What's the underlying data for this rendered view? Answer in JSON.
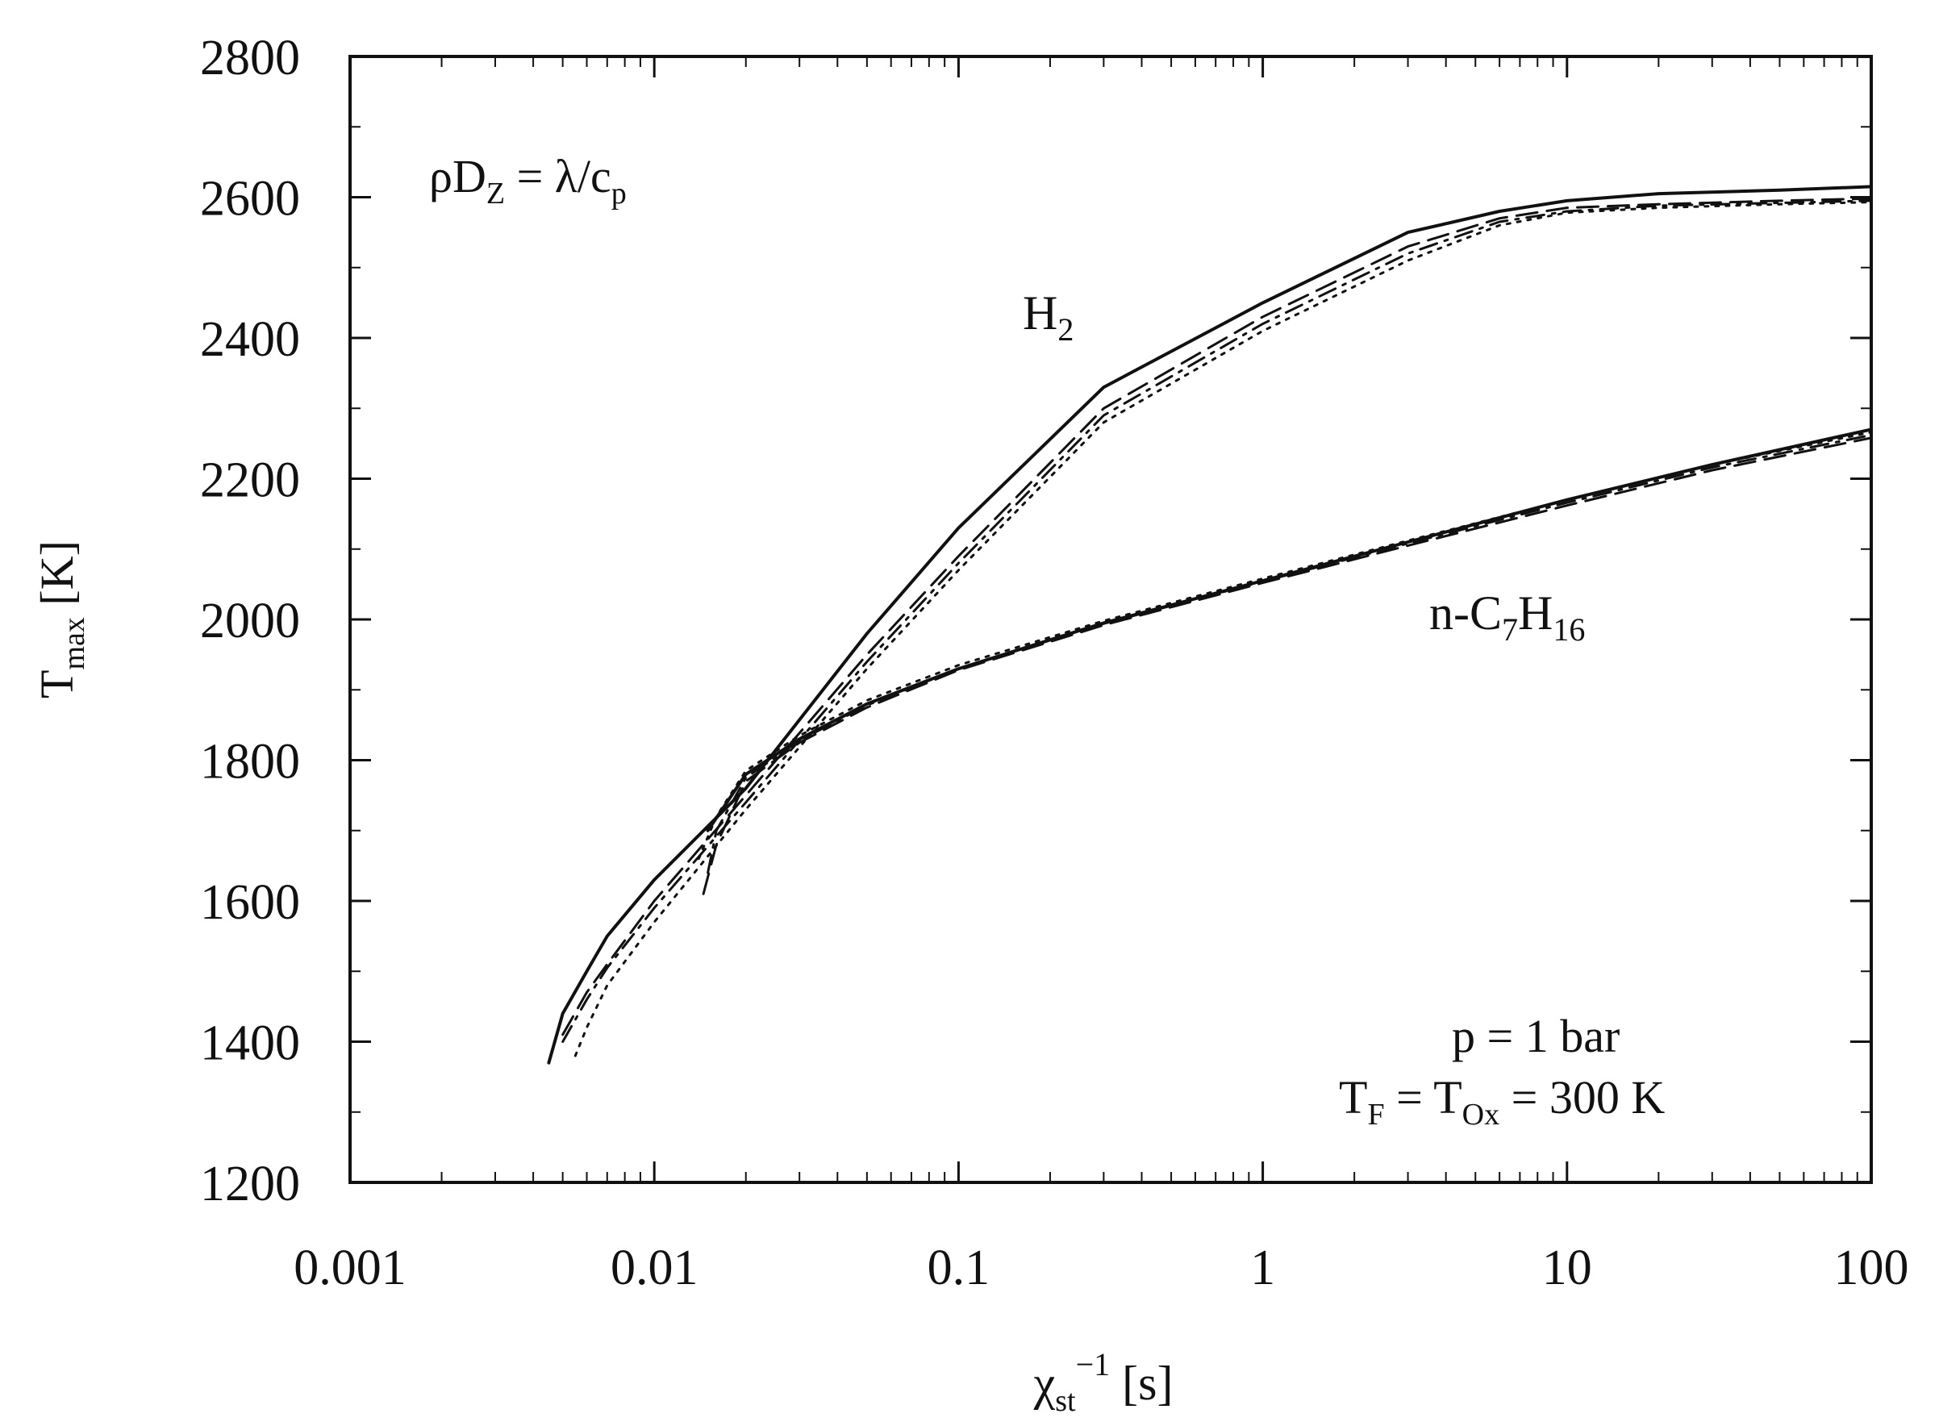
{
  "chart_data": {
    "type": "line",
    "x_scale": "log",
    "xlim": [
      0.001,
      100
    ],
    "ylim": [
      1200,
      2800
    ],
    "x_ticks": [
      {
        "value": 0.001,
        "label": "0.001"
      },
      {
        "value": 0.01,
        "label": "0.01"
      },
      {
        "value": 0.1,
        "label": "0.1"
      },
      {
        "value": 1,
        "label": "1"
      },
      {
        "value": 10,
        "label": "10"
      },
      {
        "value": 100,
        "label": "100"
      }
    ],
    "y_ticks": [
      {
        "value": 1200,
        "label": "1200"
      },
      {
        "value": 1400,
        "label": "1400"
      },
      {
        "value": 1600,
        "label": "1600"
      },
      {
        "value": 1800,
        "label": "1800"
      },
      {
        "value": 2000,
        "label": "2000"
      },
      {
        "value": 2200,
        "label": "2200"
      },
      {
        "value": 2400,
        "label": "2400"
      },
      {
        "value": 2600,
        "label": "2600"
      },
      {
        "value": 2800,
        "label": "2800"
      }
    ],
    "xlabel": {
      "base": "χ",
      "sub": "st",
      "sup": "−1",
      "unit": " [s]"
    },
    "ylabel": {
      "base": "T",
      "sub": "max",
      "unit": " [K]"
    },
    "annotations": {
      "relation": {
        "a": "ρD",
        "a_sub": "Z",
        "b": " = λ/c",
        "b_sub": "p"
      },
      "h2": {
        "base": "H",
        "sub": "2"
      },
      "heptane": {
        "a": "n-C",
        "a_sub": "7",
        "b": "H",
        "b_sub": "16"
      },
      "pressure": "p = 1 bar",
      "temperature": {
        "a": "T",
        "a_sub": "F",
        "b": " = T",
        "b_sub": "Ox",
        "c": " = 300 K"
      }
    },
    "series": [
      {
        "group": "H2",
        "style": "solid",
        "x": [
          0.0045,
          0.005,
          0.006,
          0.007,
          0.01,
          0.02,
          0.05,
          0.1,
          0.3,
          1,
          3,
          6,
          10,
          20,
          50,
          100
        ],
        "y": [
          1370,
          1440,
          1500,
          1550,
          1630,
          1760,
          1980,
          2130,
          2330,
          2450,
          2550,
          2580,
          2595,
          2605,
          2610,
          2615
        ]
      },
      {
        "group": "H2",
        "style": "dashed",
        "x": [
          0.005,
          0.006,
          0.007,
          0.01,
          0.02,
          0.05,
          0.1,
          0.3,
          1,
          3,
          6,
          10,
          20,
          50,
          100
        ],
        "y": [
          1410,
          1470,
          1510,
          1600,
          1750,
          1950,
          2090,
          2300,
          2430,
          2530,
          2570,
          2585,
          2590,
          2595,
          2598
        ]
      },
      {
        "group": "H2",
        "style": "dashdot",
        "x": [
          0.005,
          0.006,
          0.007,
          0.01,
          0.02,
          0.05,
          0.1,
          0.3,
          1,
          3,
          6,
          10,
          20,
          50,
          100
        ],
        "y": [
          1400,
          1460,
          1505,
          1590,
          1740,
          1940,
          2080,
          2290,
          2420,
          2520,
          2565,
          2580,
          2588,
          2592,
          2595
        ]
      },
      {
        "group": "H2",
        "style": "dotted",
        "x": [
          0.0055,
          0.006,
          0.007,
          0.01,
          0.02,
          0.05,
          0.1,
          0.3,
          1,
          3,
          6,
          10,
          20,
          50,
          100
        ],
        "y": [
          1380,
          1420,
          1480,
          1570,
          1730,
          1930,
          2070,
          2280,
          2410,
          2510,
          2560,
          2578,
          2585,
          2590,
          2593
        ]
      },
      {
        "group": "n-C7H16",
        "style": "solid",
        "x": [
          0.015,
          0.02,
          0.03,
          0.05,
          0.1,
          0.3,
          1,
          3,
          10,
          30,
          100
        ],
        "y": [
          1700,
          1780,
          1830,
          1880,
          1930,
          1995,
          2055,
          2110,
          2170,
          2220,
          2270
        ]
      },
      {
        "group": "n-C7H16",
        "style": "dashed",
        "x": [
          0.0145,
          0.016,
          0.02,
          0.03,
          0.05,
          0.1,
          0.3,
          1,
          3,
          10,
          30,
          100
        ],
        "y": [
          1610,
          1680,
          1770,
          1825,
          1875,
          1928,
          1992,
          2052,
          2105,
          2162,
          2212,
          2258
        ]
      },
      {
        "group": "n-C7H16",
        "style": "dashdot",
        "x": [
          0.015,
          0.016,
          0.02,
          0.03,
          0.05,
          0.1,
          0.3,
          1,
          3,
          10,
          30,
          100
        ],
        "y": [
          1640,
          1700,
          1775,
          1828,
          1878,
          1930,
          1994,
          2054,
          2108,
          2166,
          2216,
          2262
        ]
      },
      {
        "group": "n-C7H16",
        "style": "dotted",
        "x": [
          0.014,
          0.016,
          0.02,
          0.03,
          0.05,
          0.1,
          0.3,
          1,
          3,
          10,
          30,
          100
        ],
        "y": [
          1660,
          1720,
          1785,
          1835,
          1885,
          1935,
          1998,
          2058,
          2112,
          2170,
          2220,
          2266
        ]
      }
    ]
  }
}
